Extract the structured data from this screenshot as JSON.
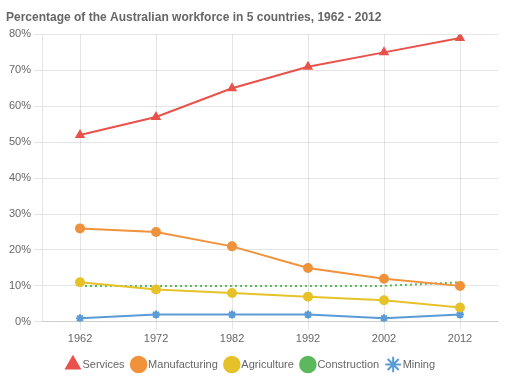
{
  "chart_data": {
    "type": "line",
    "title": "Percentage of the Australian workforce in 5 countries, 1962 - 2012",
    "x": [
      1962,
      1972,
      1982,
      1992,
      2002,
      2012
    ],
    "series": [
      {
        "name": "Services",
        "color": "#e8524a",
        "line_style": "solid",
        "marker": "triangle",
        "values": [
          52,
          57,
          65,
          71,
          75,
          79
        ]
      },
      {
        "name": "Manufacturing",
        "color": "#f0923b",
        "line_style": "solid",
        "marker": "circle",
        "values": [
          26,
          25,
          21,
          15,
          12,
          10
        ]
      },
      {
        "name": "Agriculture",
        "color": "#e6c229",
        "line_style": "solid",
        "marker": "circle",
        "values": [
          11,
          9,
          8,
          7,
          6,
          4
        ]
      },
      {
        "name": "Construction",
        "color": "#5cb85c",
        "line_style": "dotted",
        "marker": "none",
        "values": [
          10,
          10,
          10,
          10,
          10,
          11
        ]
      },
      {
        "name": "Mining",
        "color": "#5b9bd5",
        "line_style": "solid",
        "marker": "star",
        "values": [
          1,
          2,
          2,
          2,
          1,
          2
        ]
      }
    ],
    "xlim": [
      1957,
      2017
    ],
    "xticks": [
      1962,
      1972,
      1982,
      1992,
      2002,
      2012
    ],
    "ylim": [
      0,
      80
    ],
    "yticks": [
      {
        "value": 0,
        "label": "0%"
      },
      {
        "value": 10,
        "label": "10%"
      },
      {
        "value": 20,
        "label": "20%"
      },
      {
        "value": 30,
        "label": "30%"
      },
      {
        "value": 40,
        "label": "40%"
      },
      {
        "value": 50,
        "label": "50%"
      },
      {
        "value": 60,
        "label": "60%"
      },
      {
        "value": 70,
        "label": "70%"
      },
      {
        "value": 80,
        "label": "80%"
      }
    ],
    "grid": true,
    "legend": "bottom"
  }
}
